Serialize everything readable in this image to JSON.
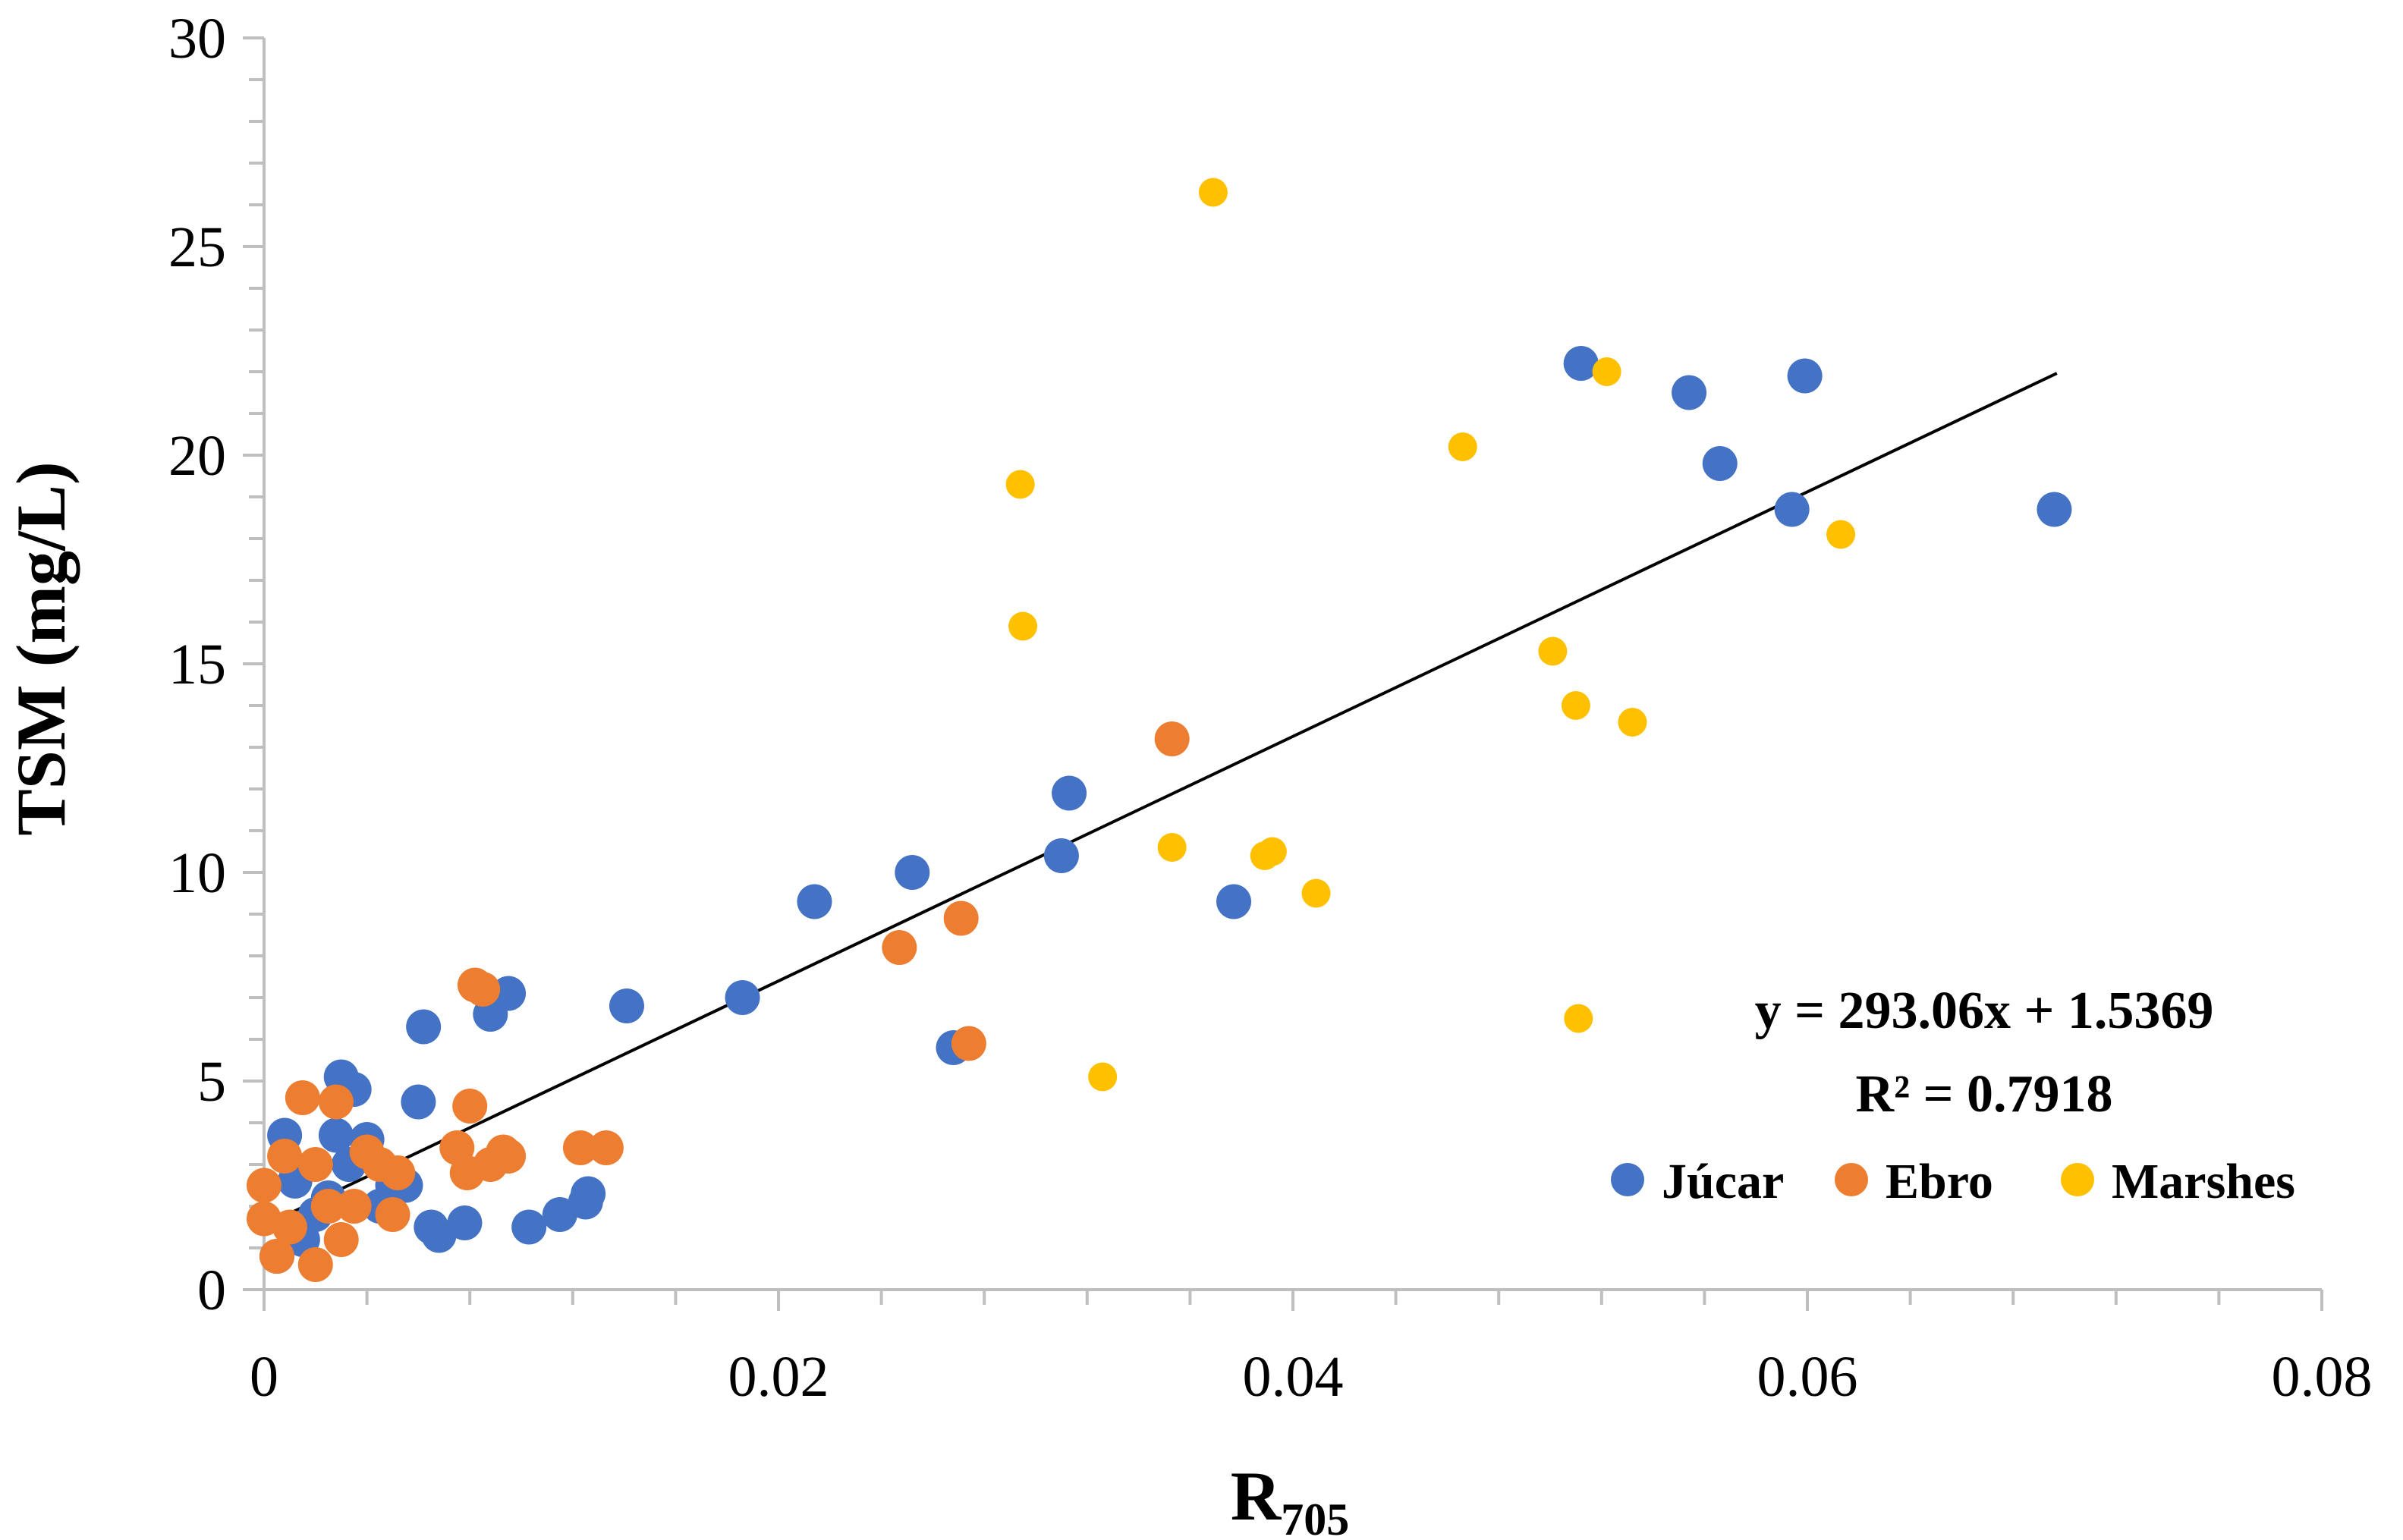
{
  "chart_data": {
    "type": "scatter",
    "title": "",
    "xlabel": "R",
    "xlabel_sub": "705",
    "ylabel": "TSM (mg/L)",
    "xlim": [
      0,
      0.08
    ],
    "ylim": [
      0,
      30
    ],
    "x_ticks": [
      0,
      0.02,
      0.04,
      0.06,
      0.08
    ],
    "x_tick_labels": [
      "0",
      "0.02",
      "0.04",
      "0.06",
      "0.08"
    ],
    "y_ticks": [
      0,
      5,
      10,
      15,
      20,
      25,
      30
    ],
    "y_tick_labels": [
      "0",
      "5",
      "10",
      "15",
      "20",
      "25",
      "30"
    ],
    "grid": false,
    "legend_position": "bottom-right",
    "series": [
      {
        "name": "Júcar",
        "color": "#4472C4",
        "x": [
          0.0005,
          0.0008,
          0.0012,
          0.0015,
          0.002,
          0.0025,
          0.0028,
          0.003,
          0.0033,
          0.0035,
          0.004,
          0.0045,
          0.005,
          0.0055,
          0.006,
          0.0062,
          0.0065,
          0.0068,
          0.0078,
          0.0088,
          0.0095,
          0.0103,
          0.0115,
          0.0125,
          0.0126,
          0.0141,
          0.0186,
          0.0214,
          0.0252,
          0.0268,
          0.031,
          0.0313,
          0.0377,
          0.0512,
          0.0554,
          0.0566,
          0.0594,
          0.0599,
          0.0696
        ],
        "y": [
          0.8,
          3.7,
          2.6,
          1.2,
          1.8,
          2.2,
          3.7,
          5.1,
          3.0,
          4.8,
          3.6,
          2.0,
          2.5,
          2.5,
          4.5,
          6.3,
          1.5,
          1.3,
          1.6,
          6.6,
          7.1,
          1.5,
          1.8,
          2.1,
          2.3,
          6.8,
          7.0,
          9.3,
          10.0,
          5.8,
          10.4,
          11.9,
          9.3,
          22.2,
          21.5,
          19.8,
          18.7,
          21.9,
          18.7
        ]
      },
      {
        "name": "Ebro",
        "color": "#ED7D31",
        "x": [
          0.0,
          0.0,
          0.0005,
          0.0008,
          0.001,
          0.0015,
          0.002,
          0.002,
          0.0025,
          0.0028,
          0.003,
          0.0035,
          0.004,
          0.0045,
          0.005,
          0.0052,
          0.0075,
          0.0079,
          0.008,
          0.0082,
          0.0085,
          0.0088,
          0.0093,
          0.0095,
          0.0123,
          0.0133,
          0.0247,
          0.0271,
          0.0274,
          0.0353
        ],
        "y": [
          1.7,
          2.5,
          0.8,
          3.2,
          1.5,
          4.6,
          3.0,
          0.6,
          2.0,
          4.5,
          1.2,
          2.0,
          3.3,
          3.0,
          1.8,
          2.8,
          3.4,
          2.8,
          4.4,
          7.3,
          7.2,
          3.0,
          3.3,
          3.2,
          3.4,
          3.4,
          8.2,
          8.9,
          5.9,
          13.2
        ]
      },
      {
        "name": "Marshes",
        "color": "#FFC000",
        "x": [
          0.0294,
          0.0295,
          0.0326,
          0.0353,
          0.0369,
          0.0389,
          0.0392,
          0.0409,
          0.0466,
          0.0501,
          0.051,
          0.0511,
          0.0522,
          0.0532,
          0.0613
        ],
        "y": [
          19.3,
          15.9,
          5.1,
          10.6,
          26.3,
          10.4,
          10.5,
          9.5,
          20.2,
          15.3,
          14.0,
          6.5,
          22.0,
          13.6,
          18.1
        ]
      }
    ],
    "trendline": {
      "equation": "y = 293.06x + 1.5369",
      "r_squared": "R² = 0.7918",
      "slope": 293.06,
      "intercept": 1.5369,
      "x_range": [
        0,
        0.0697
      ],
      "color": "#000000"
    }
  }
}
